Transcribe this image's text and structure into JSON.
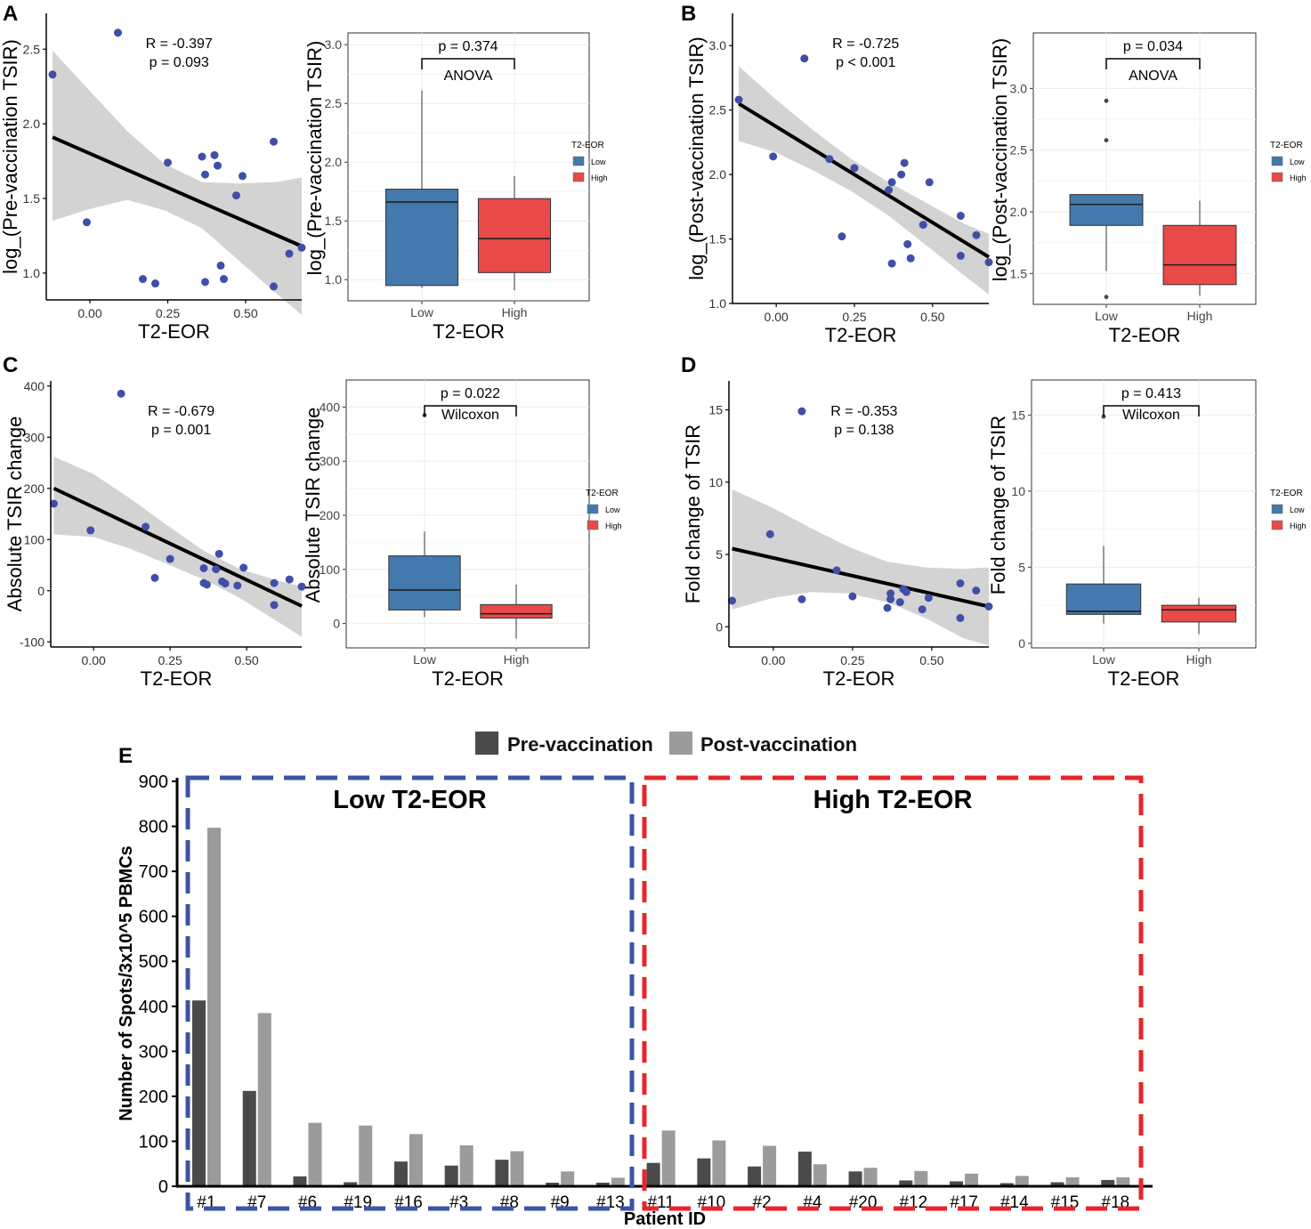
{
  "figure": {
    "panel_letters": [
      "A",
      "B",
      "C",
      "D",
      "E"
    ],
    "colors": {
      "low": "#4479AD",
      "high": "#E84A4A",
      "points": "#3F4FA8",
      "band": "#D3D3D3",
      "pre": "#4A4A4A",
      "post": "#9B9B9B",
      "low_box": "#3B54A6",
      "high_box": "#E8252B"
    }
  },
  "chart_data": [
    {
      "id": "A-scatter",
      "type": "scatter",
      "panel": "A",
      "xlabel": "T2-EOR",
      "ylabel": "log_(Pre-vaccination TSIR)",
      "xlim": [
        -0.14,
        0.68
      ],
      "ylim": [
        0.82,
        2.74
      ],
      "xticks": [
        0,
        0.25,
        0.5
      ],
      "xtick_labels": [
        "0.00",
        "0.25",
        "0.50"
      ],
      "yticks": [
        1.0,
        1.5,
        2.0,
        2.5
      ],
      "ytick_labels": [
        "1.0",
        "1.5",
        "2.0",
        "2.5"
      ],
      "annotation": [
        "R = -0.397",
        "p = 0.093"
      ],
      "points": [
        [
          -0.12,
          2.33
        ],
        [
          -0.01,
          1.34
        ],
        [
          0.09,
          2.61
        ],
        [
          0.17,
          0.96
        ],
        [
          0.21,
          0.93
        ],
        [
          0.25,
          1.74
        ],
        [
          0.36,
          1.78
        ],
        [
          0.37,
          1.66
        ],
        [
          0.37,
          0.94
        ],
        [
          0.4,
          1.79
        ],
        [
          0.41,
          1.72
        ],
        [
          0.42,
          1.05
        ],
        [
          0.43,
          0.96
        ],
        [
          0.47,
          1.52
        ],
        [
          0.49,
          1.65
        ],
        [
          0.59,
          1.88
        ],
        [
          0.59,
          0.91
        ],
        [
          0.64,
          1.13
        ],
        [
          0.68,
          1.17
        ]
      ],
      "fit": {
        "x": [
          -0.12,
          0.68
        ],
        "y": [
          1.91,
          1.18
        ]
      },
      "band": {
        "x": [
          -0.12,
          0.0,
          0.12,
          0.24,
          0.36,
          0.48,
          0.6,
          0.68
        ],
        "lower": [
          1.35,
          1.43,
          1.49,
          1.42,
          1.3,
          1.08,
          0.86,
          0.72
        ],
        "upper": [
          2.49,
          2.22,
          1.95,
          1.73,
          1.61,
          1.6,
          1.61,
          1.64
        ]
      }
    },
    {
      "id": "A-box",
      "type": "box",
      "panel": "A",
      "xlabel": "T2-EOR",
      "ylabel": "log_(Pre-vaccination TSIR)",
      "ylim": [
        0.82,
        3.1
      ],
      "yticks": [
        1.0,
        1.5,
        2.0,
        2.5,
        3.0
      ],
      "ytick_labels": [
        "1.0",
        "1.5",
        "2.0",
        "2.5",
        "3.0"
      ],
      "categories": [
        "Low",
        "High"
      ],
      "boxes": [
        {
          "name": "Low",
          "min": 0.93,
          "q1": 0.95,
          "median": 1.66,
          "q3": 1.77,
          "max": 2.61,
          "outliers": []
        },
        {
          "name": "High",
          "min": 0.91,
          "q1": 1.06,
          "median": 1.35,
          "q3": 1.69,
          "max": 1.88,
          "outliers": []
        }
      ],
      "test": {
        "p_label": "p = 0.374",
        "method": "ANOVA"
      },
      "legend": {
        "title": "T2-EOR",
        "entries": [
          "Low",
          "High"
        ]
      }
    },
    {
      "id": "B-scatter",
      "type": "scatter",
      "panel": "B",
      "xlabel": "T2-EOR",
      "ylabel": "log_(Post-vaccination TSIR)",
      "xlim": [
        -0.14,
        0.68
      ],
      "ylim": [
        1.0,
        3.25
      ],
      "xticks": [
        0,
        0.25,
        0.5
      ],
      "xtick_labels": [
        "0.00",
        "0.25",
        "0.50"
      ],
      "yticks": [
        1.0,
        1.5,
        2.0,
        2.5,
        3.0
      ],
      "ytick_labels": [
        "1.0",
        "1.5",
        "2.0",
        "2.5",
        "3.0"
      ],
      "annotation": [
        "R = -0.725",
        "p < 0.001"
      ],
      "points": [
        [
          -0.12,
          2.58
        ],
        [
          -0.01,
          2.14
        ],
        [
          0.09,
          2.9
        ],
        [
          0.17,
          2.12
        ],
        [
          0.21,
          1.52
        ],
        [
          0.25,
          2.05
        ],
        [
          0.36,
          1.88
        ],
        [
          0.37,
          1.94
        ],
        [
          0.37,
          1.31
        ],
        [
          0.4,
          2.0
        ],
        [
          0.41,
          2.09
        ],
        [
          0.42,
          1.46
        ],
        [
          0.43,
          1.35
        ],
        [
          0.47,
          1.61
        ],
        [
          0.49,
          1.94
        ],
        [
          0.59,
          1.68
        ],
        [
          0.59,
          1.37
        ],
        [
          0.64,
          1.53
        ],
        [
          0.68,
          1.32
        ]
      ],
      "fit": {
        "x": [
          -0.12,
          0.68
        ],
        "y": [
          2.55,
          1.36
        ]
      },
      "band": {
        "x": [
          -0.12,
          0.0,
          0.12,
          0.24,
          0.36,
          0.48,
          0.6,
          0.68
        ],
        "lower": [
          2.26,
          2.17,
          2.03,
          1.87,
          1.68,
          1.45,
          1.22,
          1.07
        ],
        "upper": [
          2.84,
          2.58,
          2.34,
          2.12,
          1.94,
          1.78,
          1.62,
          1.54
        ]
      }
    },
    {
      "id": "B-box",
      "type": "box",
      "panel": "B",
      "xlabel": "T2-EOR",
      "ylabel": "log_(Post-vaccination TSIR)",
      "ylim": [
        1.25,
        3.45
      ],
      "yticks": [
        1.5,
        2.0,
        2.5,
        3.0
      ],
      "ytick_labels": [
        "1.5",
        "2.0",
        "2.5",
        "3.0"
      ],
      "categories": [
        "Low",
        "High"
      ],
      "boxes": [
        {
          "name": "Low",
          "min": 1.52,
          "q1": 1.89,
          "median": 2.06,
          "q3": 2.14,
          "max": 2.14,
          "outliers": [
            2.9,
            2.58,
            1.31
          ]
        },
        {
          "name": "High",
          "min": 1.32,
          "q1": 1.41,
          "median": 1.57,
          "q3": 1.89,
          "max": 2.09,
          "outliers": []
        }
      ],
      "test": {
        "p_label": "p = 0.034",
        "method": "ANOVA"
      },
      "legend": {
        "title": "T2-EOR",
        "entries": [
          "Low",
          "High"
        ]
      }
    },
    {
      "id": "C-scatter",
      "type": "scatter",
      "panel": "C",
      "xlabel": "T2-EOR",
      "ylabel": "Absolute TSIR change",
      "xlim": [
        -0.14,
        0.68
      ],
      "ylim": [
        -110,
        410
      ],
      "xticks": [
        0,
        0.25,
        0.5
      ],
      "xtick_labels": [
        "0.00",
        "0.25",
        "0.50"
      ],
      "yticks": [
        -100,
        0,
        100,
        200,
        300,
        400
      ],
      "ytick_labels": [
        "-100",
        "0",
        "100",
        "200",
        "300",
        "400"
      ],
      "annotation": [
        "R = -0.679",
        "p = 0.001"
      ],
      "points": [
        [
          -0.13,
          170
        ],
        [
          -0.01,
          118
        ],
        [
          0.09,
          385
        ],
        [
          0.17,
          125
        ],
        [
          0.2,
          25
        ],
        [
          0.25,
          62
        ],
        [
          0.36,
          44
        ],
        [
          0.36,
          15
        ],
        [
          0.37,
          12
        ],
        [
          0.4,
          42
        ],
        [
          0.41,
          72
        ],
        [
          0.42,
          18
        ],
        [
          0.43,
          14
        ],
        [
          0.47,
          10
        ],
        [
          0.49,
          45
        ],
        [
          0.59,
          15
        ],
        [
          0.59,
          -28
        ],
        [
          0.64,
          22
        ],
        [
          0.68,
          8
        ]
      ],
      "fit": {
        "x": [
          -0.13,
          0.68
        ],
        "y": [
          200,
          -30
        ]
      },
      "band": {
        "x": [
          -0.13,
          0.0,
          0.12,
          0.24,
          0.36,
          0.48,
          0.6,
          0.68
        ],
        "lower": [
          110,
          105,
          82,
          52,
          22,
          -15,
          -60,
          -90
        ],
        "upper": [
          262,
          228,
          180,
          128,
          78,
          42,
          20,
          8
        ]
      }
    },
    {
      "id": "C-box",
      "type": "box",
      "panel": "C",
      "xlabel": "T2-EOR",
      "ylabel": "Absolute TSIR change",
      "ylim": [
        -45,
        450
      ],
      "yticks": [
        0,
        100,
        200,
        300,
        400
      ],
      "ytick_labels": [
        "0",
        "100",
        "200",
        "300",
        "400"
      ],
      "categories": [
        "Low",
        "High"
      ],
      "boxes": [
        {
          "name": "Low",
          "min": 12,
          "q1": 25,
          "median": 62,
          "q3": 125,
          "max": 170,
          "outliers": [
            385
          ]
        },
        {
          "name": "High",
          "min": -28,
          "q1": 10,
          "median": 18,
          "q3": 35,
          "max": 72,
          "outliers": []
        }
      ],
      "test": {
        "p_label": "p = 0.022",
        "method": "Wilcoxon"
      },
      "legend": {
        "title": "T2-EOR",
        "entries": [
          "Low",
          "High"
        ]
      }
    },
    {
      "id": "D-scatter",
      "type": "scatter",
      "panel": "D",
      "xlabel": "T2-EOR",
      "ylabel": "Fold change of TSIR",
      "xlim": [
        -0.14,
        0.68
      ],
      "ylim": [
        -1.4,
        17
      ],
      "xticks": [
        0,
        0.25,
        0.5
      ],
      "xtick_labels": [
        "0.00",
        "0.25",
        "0.50"
      ],
      "yticks": [
        0,
        5,
        10,
        15
      ],
      "ytick_labels": [
        "0",
        "5",
        "10",
        "15"
      ],
      "annotation": [
        "R = -0.353",
        "p = 0.138"
      ],
      "points": [
        [
          -0.13,
          1.8
        ],
        [
          -0.01,
          6.4
        ],
        [
          0.09,
          14.9
        ],
        [
          0.09,
          1.9
        ],
        [
          0.2,
          3.9
        ],
        [
          0.25,
          2.1
        ],
        [
          0.36,
          1.3
        ],
        [
          0.37,
          2.3
        ],
        [
          0.37,
          1.9
        ],
        [
          0.4,
          1.7
        ],
        [
          0.41,
          2.6
        ],
        [
          0.42,
          2.4
        ],
        [
          0.47,
          1.2
        ],
        [
          0.49,
          2.0
        ],
        [
          0.59,
          3.0
        ],
        [
          0.59,
          0.6
        ],
        [
          0.64,
          2.5
        ],
        [
          0.68,
          1.4
        ]
      ],
      "fit": {
        "x": [
          -0.13,
          0.68
        ],
        "y": [
          5.4,
          1.4
        ]
      },
      "band": {
        "x": [
          -0.13,
          0.0,
          0.12,
          0.24,
          0.36,
          0.48,
          0.6,
          0.68
        ],
        "lower": [
          1.2,
          2.0,
          2.4,
          2.3,
          1.7,
          0.6,
          -0.8,
          -1.3
        ],
        "upper": [
          9.5,
          8.2,
          6.8,
          5.5,
          4.5,
          4.1,
          4.0,
          4.1
        ]
      }
    },
    {
      "id": "D-box",
      "type": "box",
      "panel": "D",
      "xlabel": "T2-EOR",
      "ylabel": "Fold change of TSIR",
      "ylim": [
        -0.3,
        17.3
      ],
      "yticks": [
        0,
        5,
        10,
        15
      ],
      "ytick_labels": [
        "0",
        "5",
        "10",
        "15"
      ],
      "categories": [
        "Low",
        "High"
      ],
      "boxes": [
        {
          "name": "Low",
          "min": 1.3,
          "q1": 1.9,
          "median": 2.1,
          "q3": 3.9,
          "max": 6.4,
          "outliers": [
            14.9
          ]
        },
        {
          "name": "High",
          "min": 0.6,
          "q1": 1.4,
          "median": 2.2,
          "q3": 2.5,
          "max": 3.0,
          "outliers": []
        }
      ],
      "test": {
        "p_label": "p = 0.413",
        "method": "Wilcoxon"
      },
      "legend": {
        "title": "T2-EOR",
        "entries": [
          "Low",
          "High"
        ]
      }
    },
    {
      "id": "E-bar",
      "type": "bar",
      "panel": "E",
      "xlabel": "Patient ID",
      "ylabel": "Number of Spots/3x10^5 PBMCs",
      "ylim": [
        0,
        900
      ],
      "yticks": [
        0,
        100,
        200,
        300,
        400,
        500,
        600,
        700,
        800,
        900
      ],
      "categories": [
        "#1",
        "#7",
        "#6",
        "#19",
        "#16",
        "#3",
        "#8",
        "#9",
        "#13",
        "#11",
        "#10",
        "#2",
        "#4",
        "#20",
        "#12",
        "#17",
        "#14",
        "#15",
        "#18"
      ],
      "series": [
        {
          "name": "Pre-vaccination",
          "values": [
            413,
            212,
            22,
            9,
            55,
            46,
            59,
            8,
            8,
            52,
            62,
            44,
            77,
            33,
            13,
            11,
            7,
            9,
            14
          ]
        },
        {
          "name": "Post-vaccination",
          "values": [
            797,
            385,
            141,
            135,
            116,
            91,
            78,
            33,
            19,
            124,
            102,
            90,
            49,
            41,
            34,
            28,
            23,
            20,
            20
          ]
        }
      ],
      "groups": [
        {
          "label": "Low T2-EOR",
          "first_category": "#1",
          "last_category": "#13",
          "color": "#3B54A6"
        },
        {
          "label": "High T2-EOR",
          "first_category": "#11",
          "last_category": "#18",
          "color": "#E8252B"
        }
      ]
    }
  ]
}
